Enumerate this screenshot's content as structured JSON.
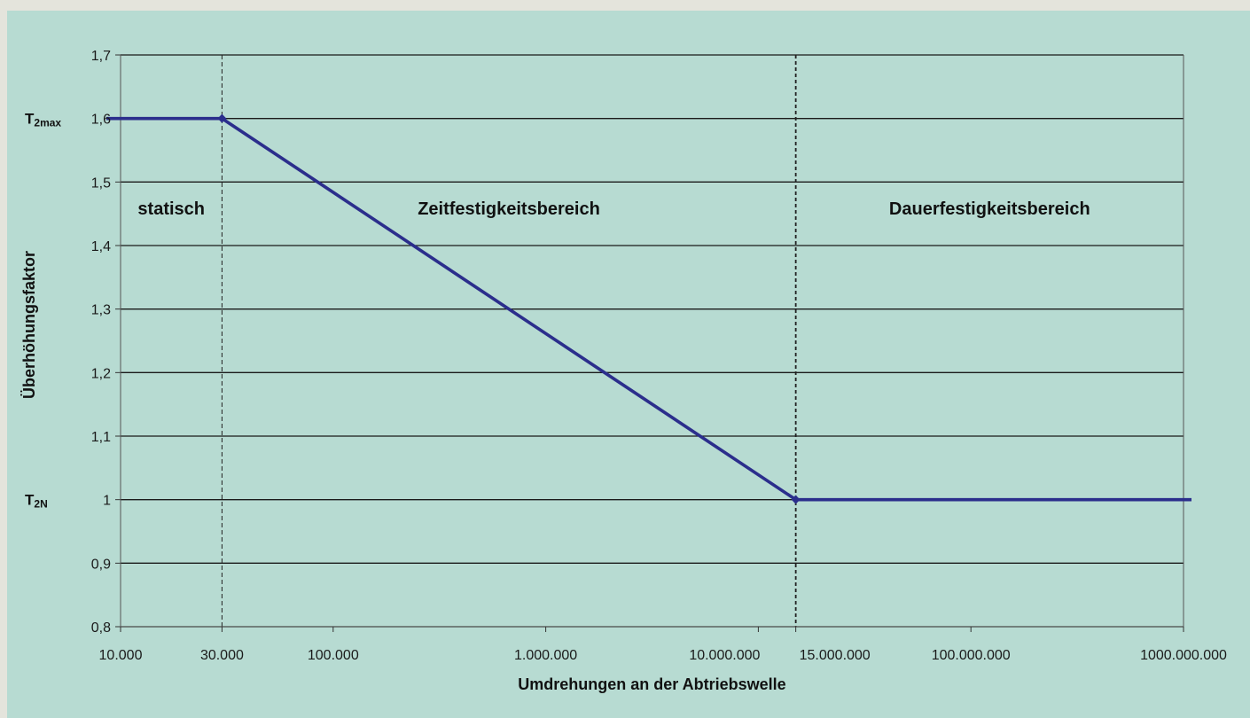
{
  "chart_data": {
    "type": "line",
    "xscale": "log",
    "xlabel": "Umdrehungen an der Abtriebswelle",
    "ylabel": "Überhöhungsfaktor",
    "ylim": [
      0.8,
      1.7
    ],
    "xlim": [
      10000,
      1000000000
    ],
    "x_ticks": [
      {
        "value": 10000,
        "label": "10.000"
      },
      {
        "value": 30000,
        "label": "30.000"
      },
      {
        "value": 100000,
        "label": "100.000"
      },
      {
        "value": 1000000,
        "label": "1.000.000"
      },
      {
        "value": 10000000,
        "label": "10.000.000"
      },
      {
        "value": 15000000,
        "label": "15.000.000"
      },
      {
        "value": 100000000,
        "label": "100.000.000"
      },
      {
        "value": 1000000000,
        "label": "1000.000.000"
      }
    ],
    "y_ticks": [
      {
        "value": 1.7,
        "label": "1,7"
      },
      {
        "value": 1.6,
        "label": "1,6"
      },
      {
        "value": 1.5,
        "label": "1,5"
      },
      {
        "value": 1.4,
        "label": "1,4"
      },
      {
        "value": 1.3,
        "label": "1,3"
      },
      {
        "value": 1.2,
        "label": "1,2"
      },
      {
        "value": 1.1,
        "label": "1,1"
      },
      {
        "value": 1.0,
        "label": "1"
      },
      {
        "value": 0.9,
        "label": "0,9"
      },
      {
        "value": 0.8,
        "label": "0,8"
      }
    ],
    "series": [
      {
        "color": "#2b2e8c",
        "points": [
          {
            "x": 10000,
            "y": 1.6
          },
          {
            "x": 30000,
            "y": 1.6
          },
          {
            "x": 15000000,
            "y": 1.0
          },
          {
            "x": 1000000000,
            "y": 1.0
          }
        ],
        "markers": [
          {
            "x": 30000,
            "y": 1.6
          },
          {
            "x": 15000000,
            "y": 1.0
          }
        ]
      }
    ],
    "vlines": [
      {
        "x": 30000
      },
      {
        "x": 15000000
      }
    ],
    "y_annotations": [
      {
        "y": 1.6,
        "main": "T",
        "sub": "2max"
      },
      {
        "y": 1.0,
        "main": "T",
        "sub": "2N"
      }
    ],
    "regions": [
      {
        "label": "statisch",
        "x_from": 10000,
        "x_to": 30000
      },
      {
        "label": "Zeitfestigkeitsbereich",
        "x_from": 30000,
        "x_to": 15000000
      },
      {
        "label": "Dauerfestigkeitsbereich",
        "x_from": 15000000,
        "x_to": 1000000000
      }
    ],
    "grid": true,
    "colors": {
      "background": "#b7dbd2",
      "line": "#2b2e8c",
      "grid": "#1a1a1a"
    }
  }
}
